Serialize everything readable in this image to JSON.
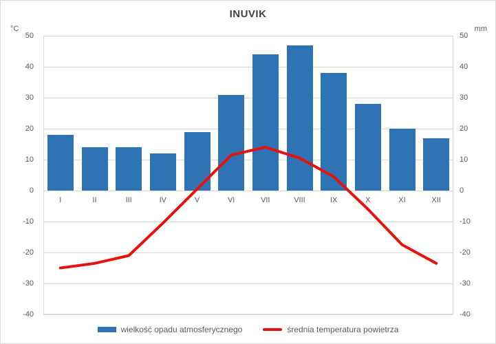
{
  "chart": {
    "title": "INUVIK",
    "left_axis_unit": "°C",
    "right_axis_unit": "mm",
    "axis_ticks": [
      50,
      40,
      30,
      20,
      10,
      0,
      -10,
      -20,
      -30,
      -40
    ],
    "months": [
      "I",
      "II",
      "III",
      "IV",
      "V",
      "VI",
      "VII",
      "VIII",
      "IX",
      "X",
      "XI",
      "XII"
    ],
    "legend": {
      "precipitation_label": "wielkość opadu atmosferycznego",
      "temperature_label": "średnia temperatura powietrza"
    },
    "colors": {
      "bar": "#2e74b5",
      "line": "#e8120c",
      "gridline": "#d9d9d9",
      "axis_text": "#595959",
      "title_text": "#404040"
    }
  },
  "chart_data": [
    {
      "type": "bar",
      "name": "wielkość opadu atmosferycznego",
      "categories": [
        "I",
        "II",
        "III",
        "IV",
        "V",
        "VI",
        "VII",
        "VIII",
        "IX",
        "X",
        "XI",
        "XII"
      ],
      "values": [
        18,
        14,
        14,
        12,
        19,
        31,
        44,
        47,
        38,
        28,
        20,
        17
      ],
      "axis": "right",
      "unit": "mm",
      "ylim": [
        -40,
        50
      ],
      "legend_position": "bottom",
      "grid": true
    },
    {
      "type": "line",
      "name": "średnia temperatura powietrza",
      "categories": [
        "I",
        "II",
        "III",
        "IV",
        "V",
        "VI",
        "VII",
        "VIII",
        "IX",
        "X",
        "XI",
        "XII"
      ],
      "values": [
        -25,
        -23.5,
        -21,
        -10.5,
        0.5,
        11.5,
        14,
        10.5,
        4.5,
        -6,
        -17.5,
        -23.5
      ],
      "axis": "left",
      "unit": "°C",
      "ylim": [
        -40,
        50
      ],
      "legend_position": "bottom",
      "grid": true
    }
  ]
}
